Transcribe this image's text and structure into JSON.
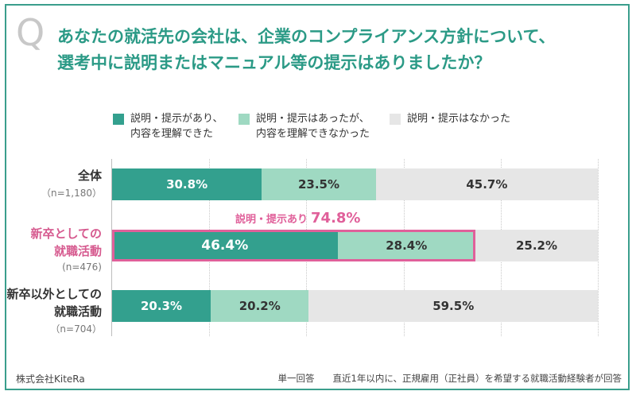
{
  "question_mark": "Q",
  "title_line1": "あなたの就活先の会社は、企業のコンプライアンス方針について、",
  "title_line2": "選考中に説明またはマニュアル等の提示はありましたか？",
  "colors": {
    "s0": "#33a08e",
    "s1": "#9fd9c2",
    "s2": "#e6e6e6",
    "accent": "#e0609a",
    "frame": "#3a9e8c"
  },
  "chart_data": {
    "type": "bar",
    "stacked": true,
    "orientation": "horizontal",
    "unit": "%",
    "series": [
      {
        "name": "説明・提示があり、\n内容を理解できた",
        "values": [
          30.8,
          46.4,
          20.3
        ]
      },
      {
        "name": "説明・提示はあったが、\n内容を理解できなかった",
        "values": [
          23.5,
          28.4,
          20.2
        ]
      },
      {
        "name": "説明・提示はなかった",
        "values": [
          45.7,
          25.2,
          59.5
        ]
      }
    ],
    "categories": [
      {
        "label": "全体",
        "n": "（n=1,180）",
        "highlight": false
      },
      {
        "label": "新卒としての\n就職活動",
        "n": "(n=476)",
        "highlight": true
      },
      {
        "label": "新卒以外としての\n就職活動",
        "n": "（n=704）",
        "highlight": false
      }
    ],
    "value_labels": [
      [
        "30.8%",
        "23.5%",
        "45.7%"
      ],
      [
        "46.4%",
        "28.4%",
        "25.2%"
      ],
      [
        "20.3%",
        "20.2%",
        "59.5%"
      ]
    ],
    "annotation": {
      "label": "説明・提示あり",
      "value": "74.8%",
      "category_index": 1
    },
    "xlim": [
      0,
      100
    ],
    "legend_position": "top"
  },
  "footer": {
    "company": "株式会社KiteRa",
    "note": "単一回答　　直近1年以内に、正規雇用（正社員）を希望する就職活動経験者が回答"
  }
}
